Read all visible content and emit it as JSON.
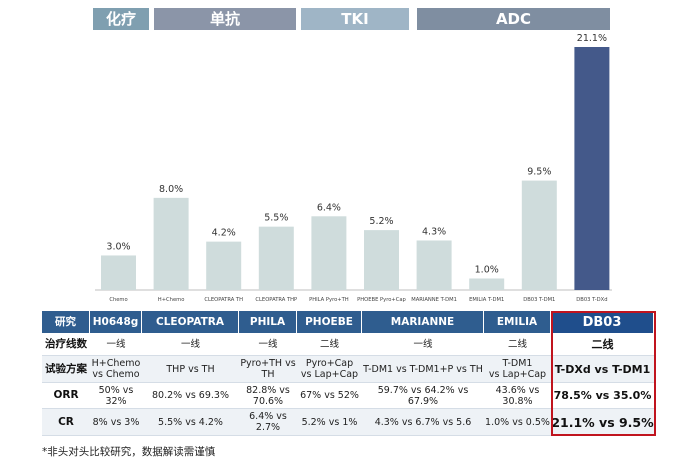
{
  "categories": [
    {
      "label": "化疗",
      "color": "#7f9fb0"
    },
    {
      "label": "单抗",
      "color": "#8b95a8"
    },
    {
      "label": "TKI",
      "color": "#9fb5c6"
    },
    {
      "label": "ADC",
      "color": "#7f8ea1"
    }
  ],
  "chart_data": {
    "type": "bar",
    "categories": [
      "Chemo",
      "H+Chemo",
      "CLEOPATRA TH",
      "CLEOPATRA THP",
      "PHILA Pyro+TH",
      "PHOEBE Pyro+Cap",
      "MARIANNE T-DM1",
      "EMILIA T-DM1",
      "DB03 T-DM1",
      "DB03 T-DXd"
    ],
    "values": [
      3.0,
      8.0,
      4.2,
      5.5,
      6.4,
      5.2,
      4.3,
      1.0,
      9.5,
      21.1
    ],
    "value_labels": [
      "3.0%",
      "8.0%",
      "4.2%",
      "5.5%",
      "6.4%",
      "5.2%",
      "4.3%",
      "1.0%",
      "9.5%",
      "21.1%"
    ],
    "ylim": [
      0,
      21.1
    ],
    "bar_color": "#cfdcdc",
    "highlight_color": "#44598a",
    "highlight_index": 9,
    "title": "",
    "xlabel": "",
    "ylabel": ""
  },
  "table": {
    "header": [
      "研究",
      "H0648g",
      "CLEOPATRA",
      "PHILA",
      "PHOEBE",
      "MARIANNE",
      "EMILIA",
      "DB03"
    ],
    "rows": [
      {
        "label": "治疗线数",
        "cells": [
          "一线",
          "一线",
          "一线",
          "二线",
          "一线",
          "二线",
          "二线"
        ]
      },
      {
        "label": "试验方案",
        "cells": [
          "H+Chemo\nvs Chemo",
          "THP vs TH",
          "Pyro+TH vs TH",
          "Pyro+Cap\nvs Lap+Cap",
          "T-DM1 vs T-DM1+P vs TH",
          "T-DM1\nvs Lap+Cap",
          "T-DXd vs T-DM1"
        ]
      },
      {
        "label": "ORR",
        "cells": [
          "50% vs 32%",
          "80.2% vs 69.3%",
          "82.8% vs 70.6%",
          "67% vs 52%",
          "59.7% vs 64.2% vs 67.9%",
          "43.6% vs 30.8%",
          "78.5% vs 35.0%"
        ]
      },
      {
        "label": "CR",
        "cells": [
          "8% vs 3%",
          "5.5% vs 4.2%",
          "6.4% vs 2.7%",
          "5.2% vs 1%",
          "4.3% vs 6.7% vs 5.6",
          "1.0% vs 0.5%",
          "21.1% vs 9.5%"
        ]
      }
    ],
    "header_color": "#2f5d8f",
    "highlight_header_color": "#1f4e8c"
  },
  "footnote": "*非头对头比较研究，数据解读需谨慎"
}
